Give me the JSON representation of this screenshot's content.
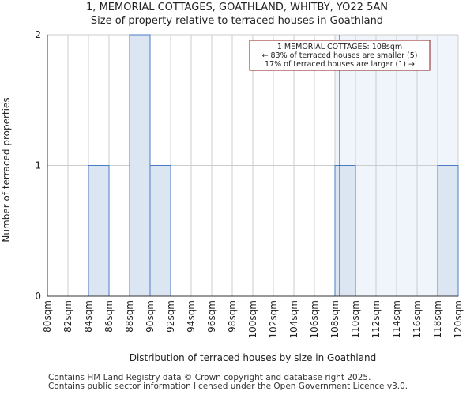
{
  "chart_data": {
    "type": "bar",
    "title_line1": "1, MEMORIAL COTTAGES, GOATHLAND, WHITBY, YO22 5AN",
    "title_line2": "Size of property relative to terraced houses in Goathland",
    "xlabel": "Distribution of terraced houses by size in Goathland",
    "ylabel": "Number of terraced properties",
    "categories": [
      "80sqm",
      "82sqm",
      "84sqm",
      "86sqm",
      "88sqm",
      "90sqm",
      "92sqm",
      "94sqm",
      "96sqm",
      "98sqm",
      "100sqm",
      "102sqm",
      "104sqm",
      "106sqm",
      "108sqm",
      "110sqm",
      "112sqm",
      "114sqm",
      "116sqm",
      "118sqm",
      "120sqm"
    ],
    "bins": [
      {
        "start": 80,
        "end": 82,
        "value": 0
      },
      {
        "start": 82,
        "end": 84,
        "value": 0
      },
      {
        "start": 84,
        "end": 86,
        "value": 1
      },
      {
        "start": 86,
        "end": 88,
        "value": 0
      },
      {
        "start": 88,
        "end": 90,
        "value": 2
      },
      {
        "start": 90,
        "end": 92,
        "value": 1
      },
      {
        "start": 92,
        "end": 94,
        "value": 0
      },
      {
        "start": 94,
        "end": 96,
        "value": 0
      },
      {
        "start": 96,
        "end": 98,
        "value": 0
      },
      {
        "start": 98,
        "end": 100,
        "value": 0
      },
      {
        "start": 100,
        "end": 102,
        "value": 0
      },
      {
        "start": 102,
        "end": 104,
        "value": 0
      },
      {
        "start": 104,
        "end": 106,
        "value": 0
      },
      {
        "start": 106,
        "end": 108,
        "value": 0
      },
      {
        "start": 108,
        "end": 110,
        "value": 1
      },
      {
        "start": 110,
        "end": 112,
        "value": 0
      },
      {
        "start": 112,
        "end": 114,
        "value": 0
      },
      {
        "start": 114,
        "end": 116,
        "value": 0
      },
      {
        "start": 116,
        "end": 118,
        "value": 0
      },
      {
        "start": 118,
        "end": 120,
        "value": 1
      }
    ],
    "xlim": [
      80,
      120
    ],
    "ylim": [
      0,
      2
    ],
    "yticks": [
      "0",
      "1",
      "2"
    ],
    "grid": true,
    "property_size": 108,
    "highlight_from": 108,
    "annotation": {
      "line1": "1 MEMORIAL COTTAGES: 108sqm",
      "line2": "← 83% of terraced houses are smaller (5)",
      "line3": "17% of terraced houses are larger (1) →"
    },
    "colors": {
      "bar_fill": "#dce6f2",
      "bar_stroke": "#4a7cc4",
      "highlight_bg": "#f0f5fc",
      "marker_line": "#8b1a1a",
      "grid": "#cccccc",
      "axis": "#333333"
    }
  },
  "footer": {
    "line1": "Contains HM Land Registry data © Crown copyright and database right 2025.",
    "line2": "Contains public sector information licensed under the Open Government Licence v3.0."
  }
}
